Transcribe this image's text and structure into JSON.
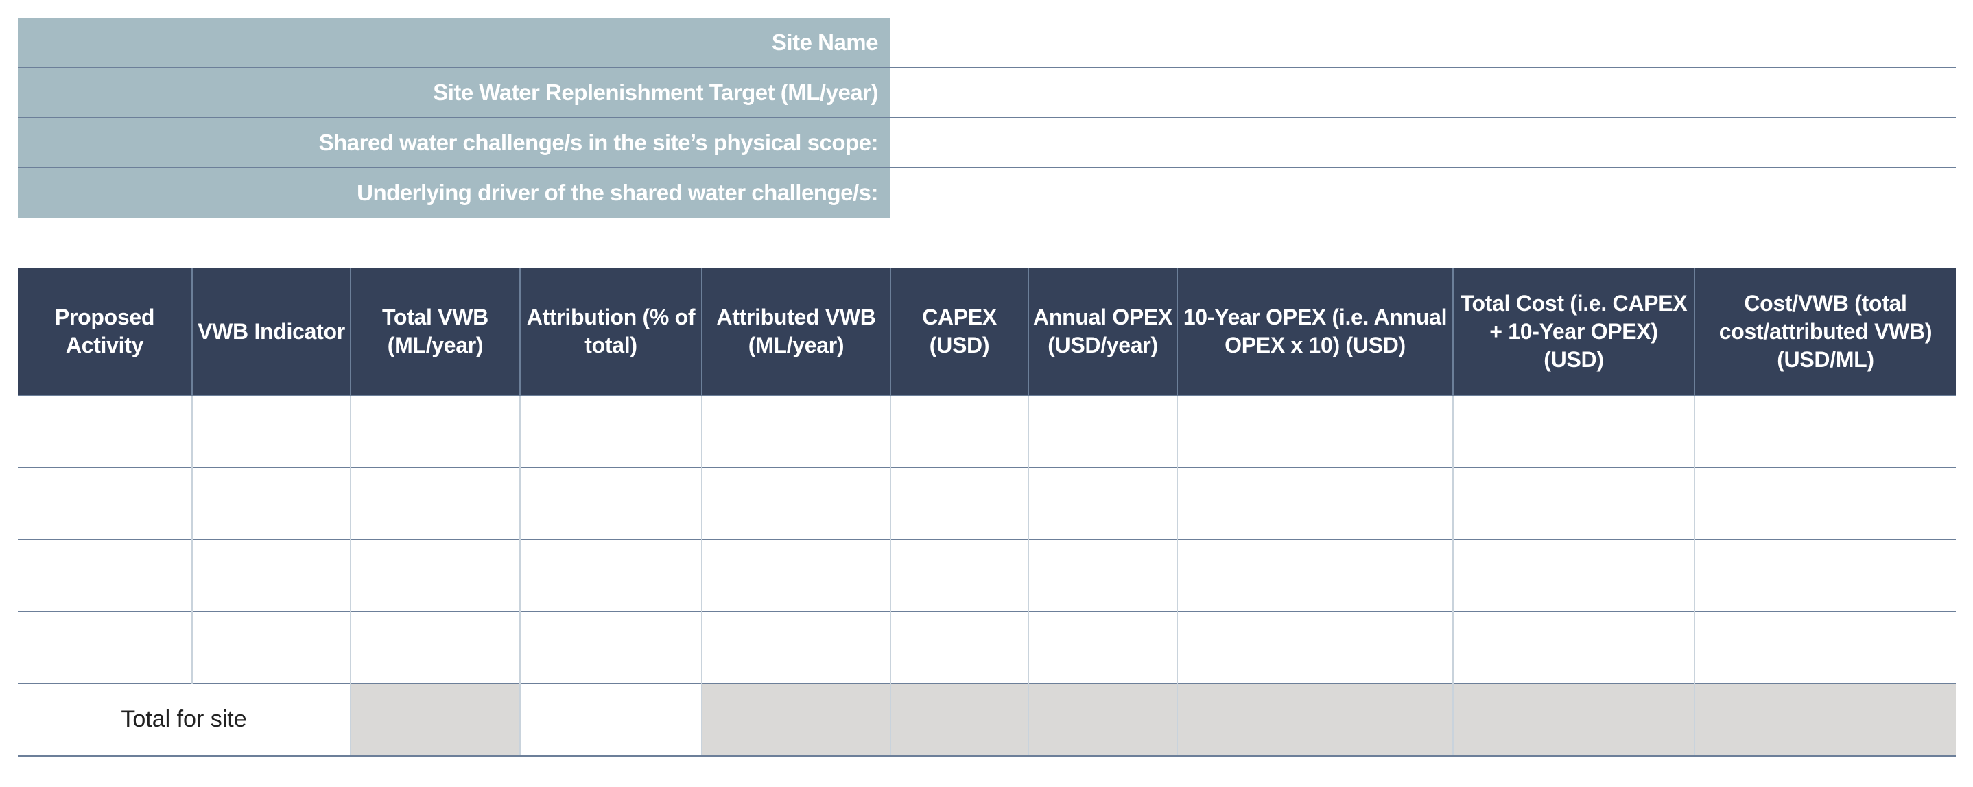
{
  "info_fields": [
    {
      "label": "Site Name",
      "value": ""
    },
    {
      "label": "Site Water Replenishment Target (ML/year)",
      "value": ""
    },
    {
      "label": "Shared water challenge/s in the site’s physical scope:",
      "value": ""
    },
    {
      "label": "Underlying driver of the shared water challenge/s:",
      "value": ""
    }
  ],
  "table": {
    "headers": [
      "Proposed Activity",
      "VWB Indicator",
      "Total VWB (ML/year)",
      "Attribution (% of total)",
      "Attributed VWB (ML/year)",
      "CAPEX (USD)",
      "Annual OPEX (USD/year)",
      "10-Year OPEX (i.e. Annual OPEX x 10) (USD)",
      "Total Cost (i.e. CAPEX + 10-Year OPEX) (USD)",
      "Cost/VWB (total cost/attributed VWB) (USD/ML)"
    ],
    "rows": [
      [
        "",
        "",
        "",
        "",
        "",
        "",
        "",
        "",
        "",
        ""
      ],
      [
        "",
        "",
        "",
        "",
        "",
        "",
        "",
        "",
        "",
        ""
      ],
      [
        "",
        "",
        "",
        "",
        "",
        "",
        "",
        "",
        "",
        ""
      ],
      [
        "",
        "",
        "",
        "",
        "",
        "",
        "",
        "",
        "",
        ""
      ]
    ],
    "total_label": "Total for site"
  },
  "colors": {
    "info_label_bg": "#a5bbc3",
    "header_bg": "#354159",
    "total_grey": "#dad9d7",
    "rule": "#6c7f99"
  }
}
